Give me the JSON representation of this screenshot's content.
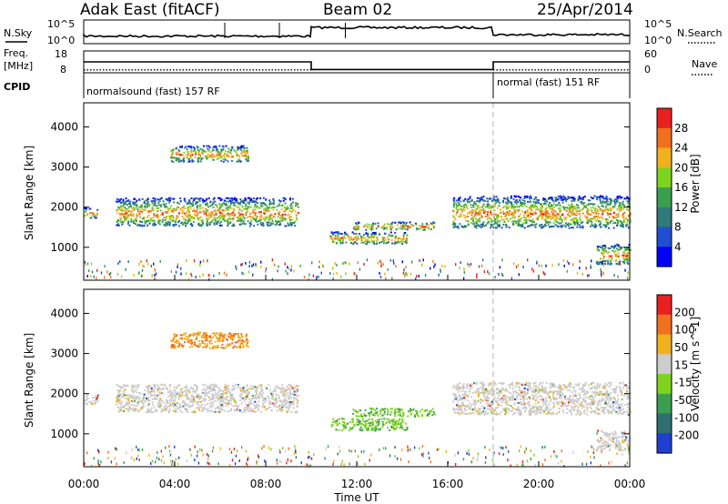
{
  "header": {
    "station": "Adak East (fitACF)",
    "beam": "Beam 02",
    "date": "25/Apr/2014"
  },
  "chart_data": [
    {
      "panel": "noise",
      "type": "line",
      "left_label": "N.Sky",
      "right_label": "N.Search",
      "left_ticks": [
        "10^5",
        "10^0"
      ],
      "right_ticks": [
        "10^5",
        "10^0"
      ],
      "series_levels": [
        {
          "x_start_h": 0.0,
          "x_end_h": 10.0,
          "level_frac": 0.32
        },
        {
          "x_start_h": 10.0,
          "x_end_h": 18.0,
          "level_frac": 0.68
        },
        {
          "x_start_h": 18.0,
          "x_end_h": 24.0,
          "level_frac": 0.38
        }
      ]
    },
    {
      "panel": "frequency",
      "type": "line",
      "left_label": "Freq.",
      "left_unit": "[MHz]",
      "right_label": "Nave",
      "left_ticks": [
        "18",
        "8"
      ],
      "right_ticks": [
        "60",
        "0"
      ],
      "freq_segments": [
        {
          "x_start_h": 0.0,
          "x_end_h": 10.0,
          "mhz": 13.0
        },
        {
          "x_start_h": 10.0,
          "x_end_h": 18.0,
          "mhz": 9.5
        },
        {
          "x_start_h": 18.0,
          "x_end_h": 24.0,
          "mhz": 13.0
        }
      ],
      "nave_segments": [
        {
          "x_start_h": 0.0,
          "x_end_h": 10.0,
          "value": 8
        },
        {
          "x_start_h": 18.0,
          "x_end_h": 24.0,
          "value": 8
        }
      ]
    },
    {
      "panel": "cpid",
      "type": "table",
      "label": "CPID",
      "entries": [
        {
          "text": "normalsound (fast) 157 RF",
          "x_start_h": 0.0
        },
        {
          "text": "normal (fast) 151 RF",
          "x_start_h": 18.0
        }
      ]
    },
    {
      "panel": "power",
      "type": "heatmap",
      "ylabel": "Slant Range [km]",
      "y_ticks": [
        1000,
        2000,
        3000,
        4000
      ],
      "ylim": [
        180,
        4600
      ],
      "colorbar_label": "Power [dB]",
      "colorbar_ticks": [
        4,
        8,
        12,
        16,
        20,
        24,
        28
      ],
      "colorbar_range": [
        0,
        30
      ],
      "colors": [
        "#0000ff",
        "#1f4fd0",
        "#2f7a7a",
        "#3aa050",
        "#7ed320",
        "#f0b020",
        "#f07020",
        "#e82020"
      ],
      "features": [
        {
          "name": "early-arc",
          "t0": 0.0,
          "t1": 0.6,
          "r0": 1750,
          "r1": 2000
        },
        {
          "name": "main-band",
          "t0": 1.4,
          "t1": 9.4,
          "r0": 1550,
          "r1": 2250
        },
        {
          "name": "upper-patch",
          "t0": 3.8,
          "t1": 7.2,
          "r0": 3150,
          "r1": 3550
        },
        {
          "name": "noon-streak",
          "t0": 11.8,
          "t1": 15.4,
          "r0": 1450,
          "r1": 1650
        },
        {
          "name": "lower-streak",
          "t0": 10.8,
          "t1": 14.2,
          "r0": 1100,
          "r1": 1400
        },
        {
          "name": "evening-band",
          "t0": 16.2,
          "t1": 24.0,
          "r0": 1500,
          "r1": 2300
        },
        {
          "name": "late-tail",
          "t0": 22.5,
          "t1": 24.0,
          "r0": 600,
          "r1": 1100
        }
      ]
    },
    {
      "panel": "velocity",
      "type": "heatmap",
      "ylabel": "Slant Range [km]",
      "y_ticks": [
        1000,
        2000,
        3000,
        4000
      ],
      "ylim": [
        180,
        4600
      ],
      "colorbar_label": "Velocity [m s^-1]",
      "colorbar_ticks": [
        "200",
        "100",
        "50",
        "15",
        "-15",
        "-50",
        "-100",
        "-200"
      ],
      "colors": [
        "#1f3fd0",
        "#2f6f70",
        "#3aa050",
        "#7ed320",
        "#cccccc",
        "#f0b020",
        "#f07020",
        "#e82020"
      ],
      "features": [
        {
          "name": "early-arc",
          "t0": 0.0,
          "t1": 0.6,
          "r0": 1750,
          "r1": 2000
        },
        {
          "name": "main-band",
          "t0": 1.4,
          "t1": 9.4,
          "r0": 1550,
          "r1": 2250
        },
        {
          "name": "upper-patch",
          "t0": 3.8,
          "t1": 7.2,
          "r0": 3150,
          "r1": 3550
        },
        {
          "name": "noon-streak",
          "t0": 11.8,
          "t1": 15.4,
          "r0": 1450,
          "r1": 1650
        },
        {
          "name": "lower-streak",
          "t0": 10.8,
          "t1": 14.2,
          "r0": 1100,
          "r1": 1400
        },
        {
          "name": "evening-band",
          "t0": 16.2,
          "t1": 24.0,
          "r0": 1500,
          "r1": 2300
        },
        {
          "name": "late-tail",
          "t0": 22.5,
          "t1": 24.0,
          "r0": 600,
          "r1": 1100
        }
      ]
    }
  ],
  "time_axis": {
    "label": "Time UT",
    "ticks": [
      "00:00",
      "04:00",
      "08:00",
      "12:00",
      "16:00",
      "20:00",
      "00:00"
    ],
    "tick_hours": [
      0,
      4,
      8,
      12,
      16,
      20,
      24
    ]
  }
}
